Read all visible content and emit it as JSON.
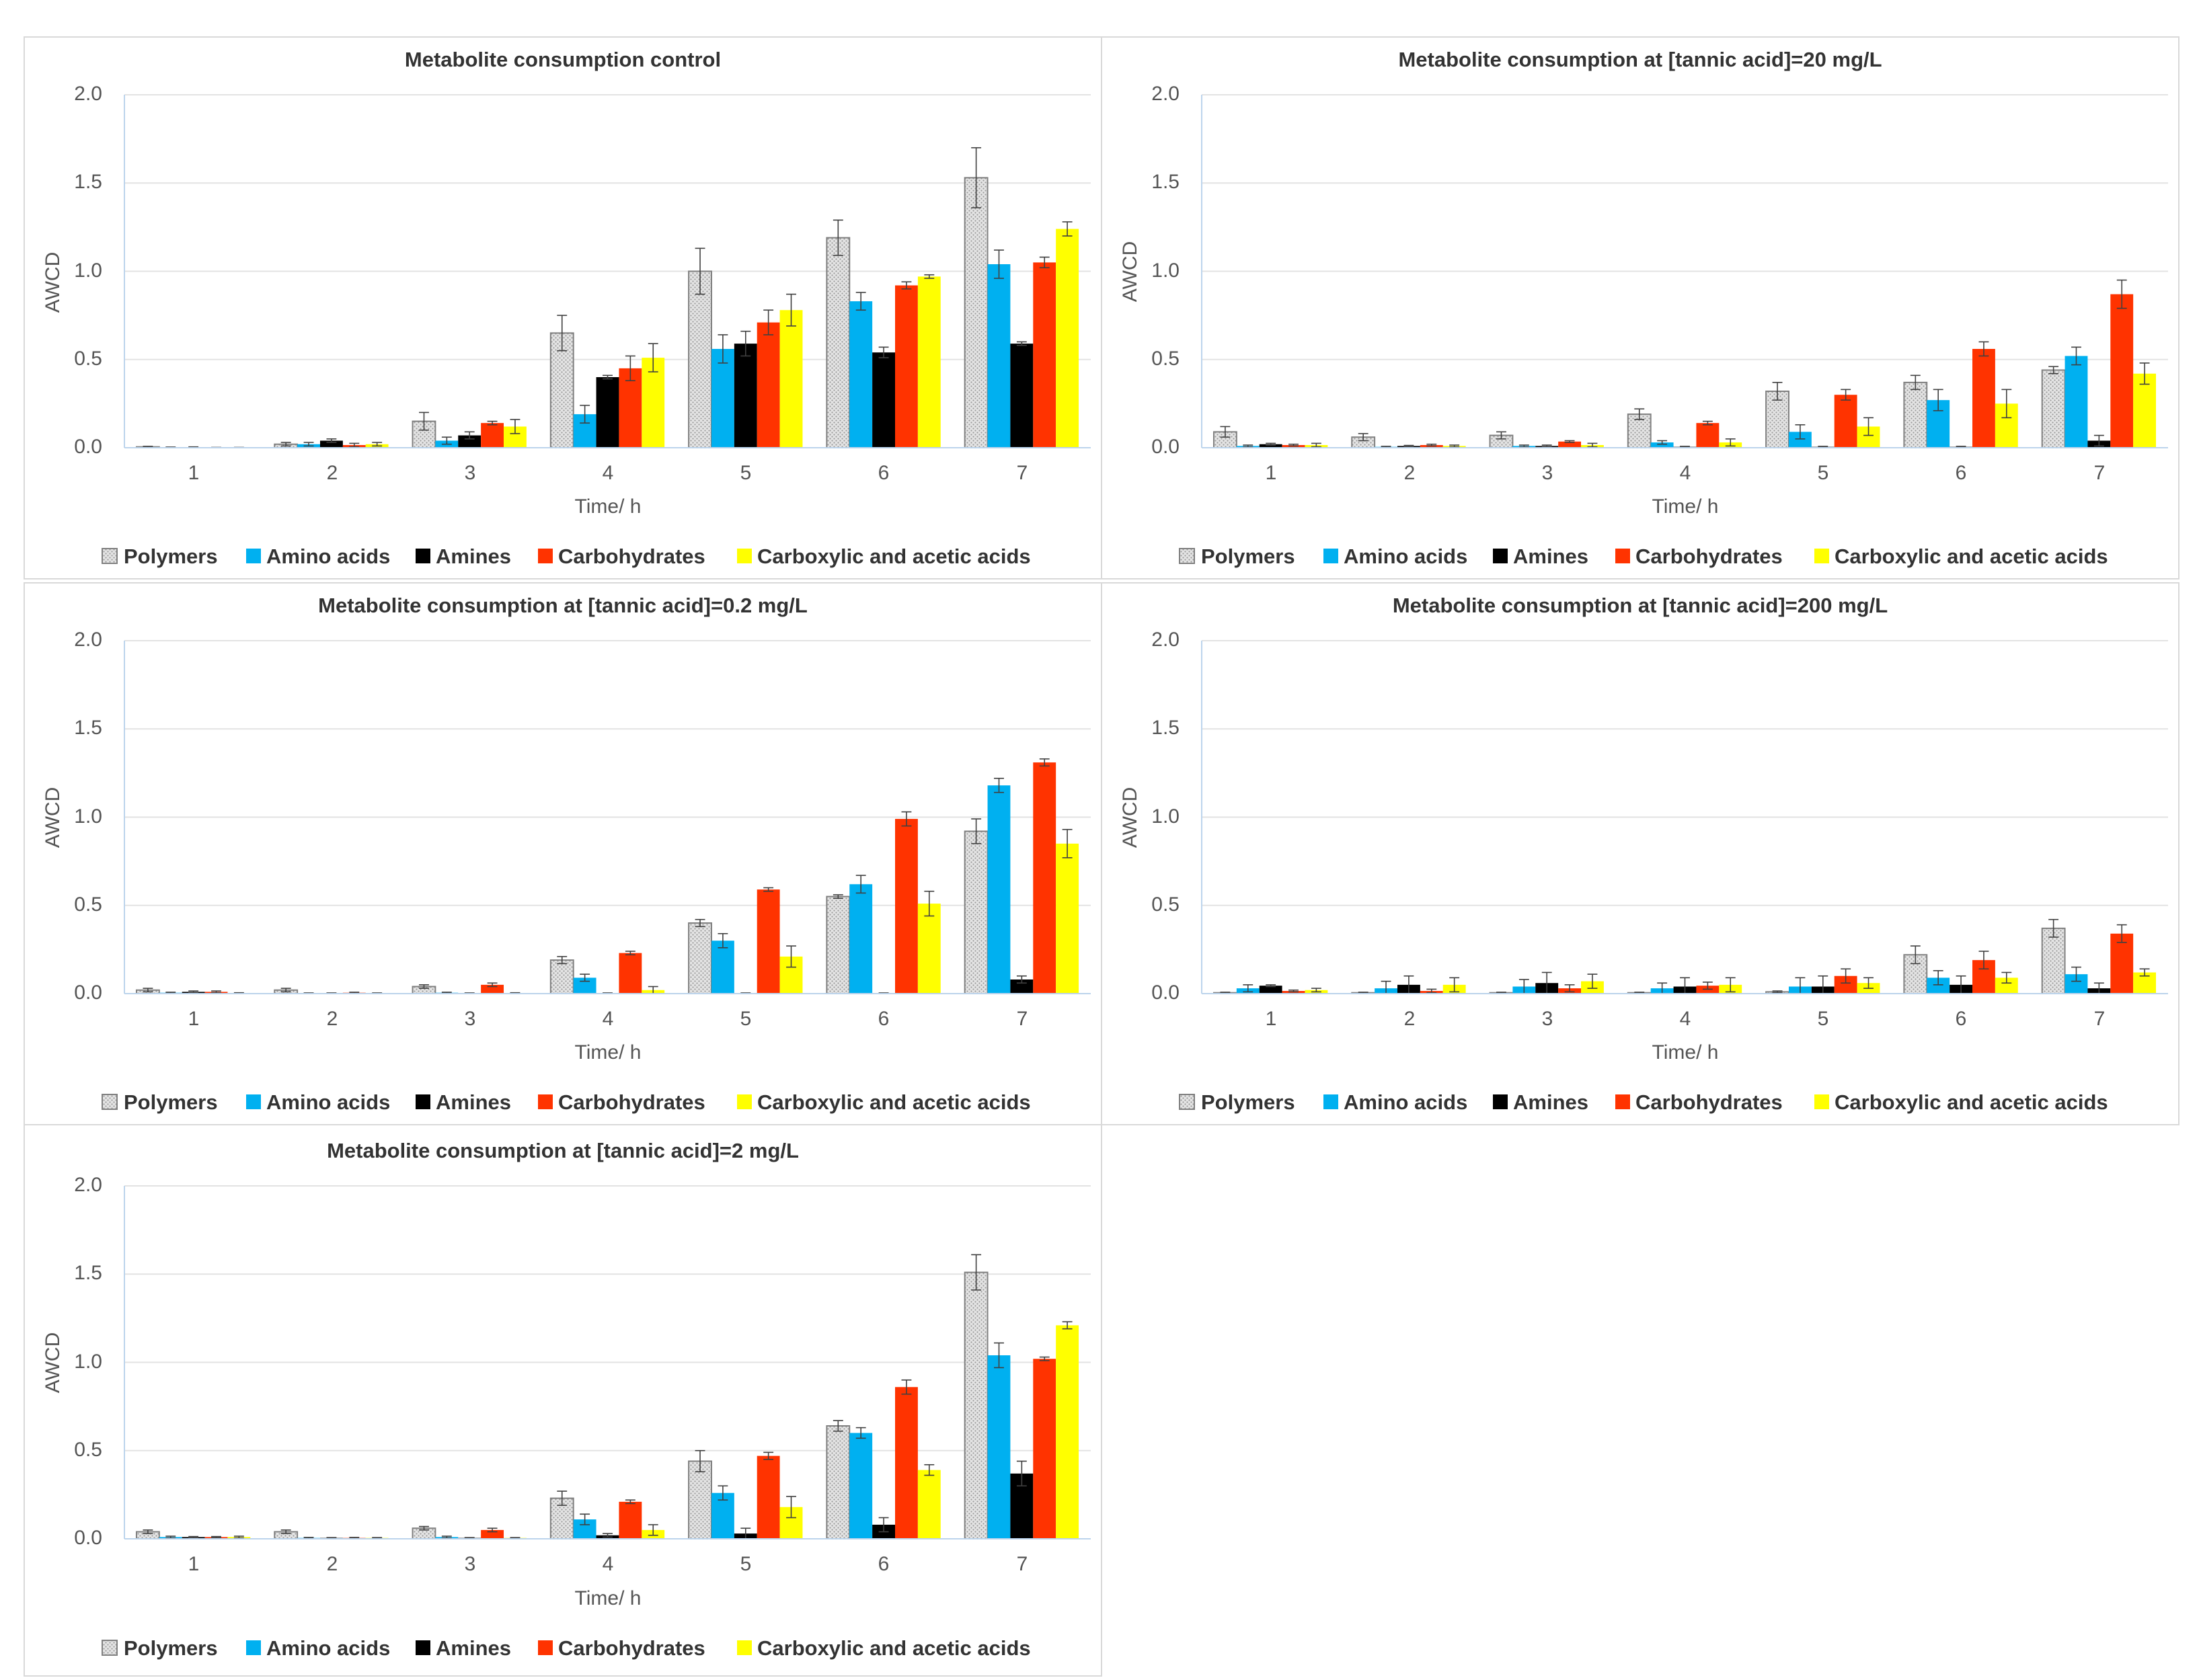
{
  "chart_data": [
    {
      "type": "bar",
      "title": "Metabolite consumption control",
      "xlabel": "Time/ h",
      "ylabel": "AWCD",
      "ylim": [
        0,
        2.0
      ],
      "yticks": [
        "0.0",
        "0.5",
        "1.0",
        "1.5",
        "2.0"
      ],
      "categories": [
        "1",
        "2",
        "3",
        "4",
        "5",
        "6",
        "7"
      ],
      "legend_position": "bottom",
      "grid": true,
      "series": [
        {
          "name": "Polymers",
          "color": "#e0e0e0",
          "values": [
            0.005,
            0.02,
            0.15,
            0.65,
            1.0,
            1.19,
            1.53
          ],
          "errors": [
            0.003,
            0.01,
            0.05,
            0.1,
            0.13,
            0.1,
            0.17
          ]
        },
        {
          "name": "Amino acids",
          "color": "#00b0f0",
          "values": [
            0.002,
            0.02,
            0.04,
            0.19,
            0.56,
            0.83,
            1.04
          ],
          "errors": [
            0.002,
            0.01,
            0.02,
            0.05,
            0.08,
            0.05,
            0.08
          ]
        },
        {
          "name": "Amines",
          "color": "#000000",
          "values": [
            0.003,
            0.04,
            0.07,
            0.4,
            0.59,
            0.54,
            0.59
          ],
          "errors": [
            0.002,
            0.01,
            0.02,
            0.01,
            0.07,
            0.03,
            0.01
          ]
        },
        {
          "name": "Carbohydrates",
          "color": "#ff3300",
          "values": [
            0.001,
            0.015,
            0.14,
            0.45,
            0.71,
            0.92,
            1.05
          ],
          "errors": [
            0.001,
            0.01,
            0.01,
            0.07,
            0.07,
            0.02,
            0.03
          ]
        },
        {
          "name": "Carboxylic and acetic acids",
          "color": "#ffff00",
          "values": [
            0.001,
            0.02,
            0.12,
            0.51,
            0.78,
            0.97,
            1.24
          ],
          "errors": [
            0.001,
            0.01,
            0.04,
            0.08,
            0.09,
            0.01,
            0.04
          ]
        }
      ]
    },
    {
      "type": "bar",
      "title": "Metabolite consumption at [tannic acid]=20 mg/L",
      "xlabel": "Time/ h",
      "ylabel": "AWCD",
      "ylim": [
        0,
        2.0
      ],
      "yticks": [
        "0.0",
        "0.5",
        "1.0",
        "1.5",
        "2.0"
      ],
      "categories": [
        "1",
        "2",
        "3",
        "4",
        "5",
        "6",
        "7"
      ],
      "legend_position": "bottom",
      "grid": true,
      "series": [
        {
          "name": "Polymers",
          "color": "#e0e0e0",
          "values": [
            0.09,
            0.06,
            0.07,
            0.19,
            0.32,
            0.37,
            0.44
          ],
          "errors": [
            0.03,
            0.02,
            0.02,
            0.03,
            0.05,
            0.04,
            0.02
          ]
        },
        {
          "name": "Amino acids",
          "color": "#00b0f0",
          "values": [
            0.01,
            0.005,
            0.01,
            0.03,
            0.09,
            0.27,
            0.52
          ],
          "errors": [
            0.005,
            0.003,
            0.005,
            0.01,
            0.04,
            0.06,
            0.05
          ]
        },
        {
          "name": "Amines",
          "color": "#000000",
          "values": [
            0.02,
            0.01,
            0.01,
            0.005,
            0.005,
            0.005,
            0.04
          ],
          "errors": [
            0.005,
            0.003,
            0.005,
            0.003,
            0.003,
            0.003,
            0.03
          ]
        },
        {
          "name": "Carbohydrates",
          "color": "#ff3300",
          "values": [
            0.015,
            0.015,
            0.035,
            0.14,
            0.3,
            0.56,
            0.87
          ],
          "errors": [
            0.005,
            0.005,
            0.005,
            0.01,
            0.03,
            0.04,
            0.08
          ]
        },
        {
          "name": "Carboxylic and acetic acids",
          "color": "#ffff00",
          "values": [
            0.015,
            0.01,
            0.015,
            0.03,
            0.12,
            0.25,
            0.42
          ],
          "errors": [
            0.01,
            0.005,
            0.01,
            0.02,
            0.05,
            0.08,
            0.06
          ]
        }
      ]
    },
    {
      "type": "bar",
      "title": "Metabolite consumption at [tannic acid]=0.2 mg/L",
      "xlabel": "Time/ h",
      "ylabel": "AWCD",
      "ylim": [
        0,
        2.0
      ],
      "yticks": [
        "0.0",
        "0.5",
        "1.0",
        "1.5",
        "2.0"
      ],
      "categories": [
        "1",
        "2",
        "3",
        "4",
        "5",
        "6",
        "7"
      ],
      "legend_position": "bottom",
      "grid": true,
      "series": [
        {
          "name": "Polymers",
          "color": "#e0e0e0",
          "values": [
            0.02,
            0.02,
            0.04,
            0.19,
            0.4,
            0.55,
            0.92
          ],
          "errors": [
            0.01,
            0.01,
            0.01,
            0.02,
            0.02,
            0.01,
            0.07
          ]
        },
        {
          "name": "Amino acids",
          "color": "#00b0f0",
          "values": [
            0.005,
            0.002,
            0.005,
            0.09,
            0.3,
            0.62,
            1.18
          ],
          "errors": [
            0.003,
            0.002,
            0.003,
            0.02,
            0.04,
            0.05,
            0.04
          ]
        },
        {
          "name": "Amines",
          "color": "#000000",
          "values": [
            0.01,
            0.002,
            0.002,
            0.002,
            0.002,
            0.002,
            0.08
          ],
          "errors": [
            0.005,
            0.002,
            0.002,
            0.002,
            0.002,
            0.002,
            0.02
          ]
        },
        {
          "name": "Carbohydrates",
          "color": "#ff3300",
          "values": [
            0.01,
            0.005,
            0.05,
            0.23,
            0.59,
            0.99,
            1.31
          ],
          "errors": [
            0.005,
            0.003,
            0.01,
            0.01,
            0.01,
            0.04,
            0.02
          ]
        },
        {
          "name": "Carboxylic and acetic acids",
          "color": "#ffff00",
          "values": [
            0.003,
            0.002,
            0.003,
            0.02,
            0.21,
            0.51,
            0.85
          ],
          "errors": [
            0.002,
            0.002,
            0.002,
            0.02,
            0.06,
            0.07,
            0.08
          ]
        }
      ]
    },
    {
      "type": "bar",
      "title": "Metabolite consumption at [tannic acid]=200 mg/L",
      "xlabel": "Time/ h",
      "ylabel": "AWCD",
      "ylim": [
        0,
        2.0
      ],
      "yticks": [
        "0.0",
        "0.5",
        "1.0",
        "1.5",
        "2.0"
      ],
      "categories": [
        "1",
        "2",
        "3",
        "4",
        "5",
        "6",
        "7"
      ],
      "legend_position": "bottom",
      "grid": true,
      "series": [
        {
          "name": "Polymers",
          "color": "#e0e0e0",
          "values": [
            0.005,
            0.005,
            0.005,
            0.005,
            0.01,
            0.22,
            0.37
          ],
          "errors": [
            0.003,
            0.003,
            0.003,
            0.003,
            0.005,
            0.05,
            0.05
          ]
        },
        {
          "name": "Amino acids",
          "color": "#00b0f0",
          "values": [
            0.03,
            0.03,
            0.04,
            0.03,
            0.04,
            0.09,
            0.11
          ],
          "errors": [
            0.02,
            0.04,
            0.04,
            0.03,
            0.05,
            0.04,
            0.04
          ]
        },
        {
          "name": "Amines",
          "color": "#000000",
          "values": [
            0.045,
            0.05,
            0.06,
            0.04,
            0.04,
            0.05,
            0.03
          ],
          "errors": [
            0.005,
            0.05,
            0.06,
            0.05,
            0.06,
            0.05,
            0.03
          ]
        },
        {
          "name": "Carbohydrates",
          "color": "#ff3300",
          "values": [
            0.015,
            0.015,
            0.03,
            0.045,
            0.1,
            0.19,
            0.34
          ],
          "errors": [
            0.005,
            0.01,
            0.02,
            0.02,
            0.04,
            0.05,
            0.05
          ]
        },
        {
          "name": "Carboxylic and acetic acids",
          "color": "#ffff00",
          "values": [
            0.02,
            0.05,
            0.07,
            0.05,
            0.06,
            0.09,
            0.12
          ],
          "errors": [
            0.01,
            0.04,
            0.04,
            0.04,
            0.03,
            0.03,
            0.02
          ]
        }
      ]
    },
    {
      "type": "bar",
      "title": "Metabolite consumption at [tannic acid]=2 mg/L",
      "xlabel": "Time/ h",
      "ylabel": "AWCD",
      "ylim": [
        0,
        2.0
      ],
      "yticks": [
        "0.0",
        "0.5",
        "1.0",
        "1.5",
        "2.0"
      ],
      "categories": [
        "1",
        "2",
        "3",
        "4",
        "5",
        "6",
        "7"
      ],
      "legend_position": "bottom",
      "grid": true,
      "series": [
        {
          "name": "Polymers",
          "color": "#e0e0e0",
          "values": [
            0.04,
            0.04,
            0.06,
            0.23,
            0.44,
            0.64,
            1.51
          ],
          "errors": [
            0.01,
            0.01,
            0.01,
            0.04,
            0.06,
            0.03,
            0.1
          ]
        },
        {
          "name": "Amino acids",
          "color": "#00b0f0",
          "values": [
            0.01,
            0.005,
            0.01,
            0.11,
            0.26,
            0.6,
            1.04
          ],
          "errors": [
            0.005,
            0.003,
            0.005,
            0.03,
            0.04,
            0.03,
            0.07
          ]
        },
        {
          "name": "Amines",
          "color": "#000000",
          "values": [
            0.01,
            0.005,
            0.005,
            0.02,
            0.03,
            0.08,
            0.37
          ],
          "errors": [
            0.003,
            0.002,
            0.002,
            0.01,
            0.03,
            0.04,
            0.07
          ]
        },
        {
          "name": "Carbohydrates",
          "color": "#ff3300",
          "values": [
            0.01,
            0.005,
            0.05,
            0.21,
            0.47,
            0.86,
            1.02
          ],
          "errors": [
            0.003,
            0.003,
            0.01,
            0.01,
            0.02,
            0.04,
            0.01
          ]
        },
        {
          "name": "Carboxylic and acetic acids",
          "color": "#ffff00",
          "values": [
            0.01,
            0.005,
            0.005,
            0.05,
            0.18,
            0.39,
            1.21
          ],
          "errors": [
            0.005,
            0.002,
            0.002,
            0.03,
            0.06,
            0.03,
            0.02
          ]
        }
      ]
    }
  ]
}
